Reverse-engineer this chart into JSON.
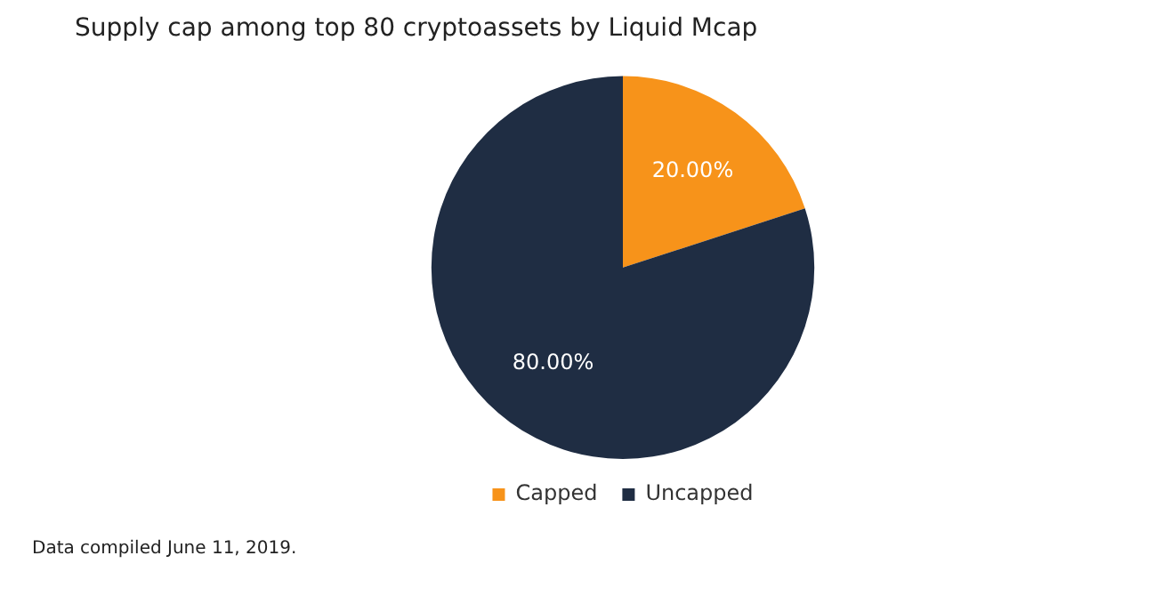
{
  "chart_data": {
    "type": "pie",
    "title": "Supply cap among top 80 cryptoassets by Liquid Mcap",
    "categories": [
      "Capped",
      "Uncapped"
    ],
    "values": [
      20,
      80
    ],
    "colors": [
      "#f7931a",
      "#1f2d43"
    ],
    "value_labels": [
      "20.00%",
      "80.00%"
    ],
    "legend": "bottom",
    "annotations": [
      "Data compiled June 11, 2019."
    ]
  }
}
